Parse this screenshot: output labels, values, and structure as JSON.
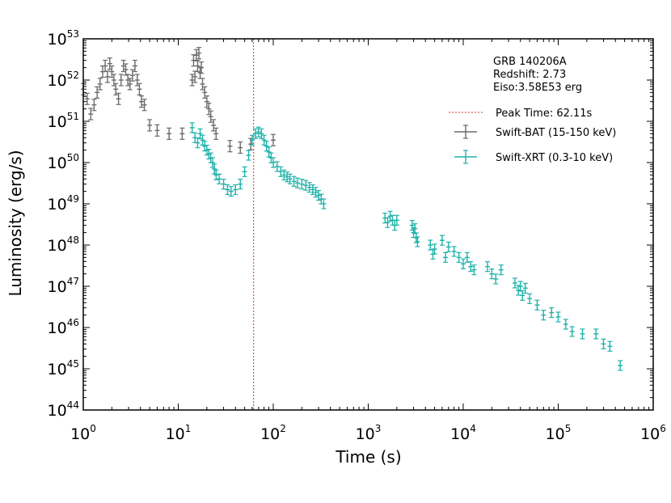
{
  "chart_data": {
    "type": "scatter",
    "title": "",
    "xlabel": "Time (s)",
    "ylabel": "Luminosity (erg/s)",
    "xscale": "log",
    "yscale": "log",
    "xlim": [
      1,
      1000000
    ],
    "ylim": [
      1e+44,
      1e+53
    ],
    "x_ticks": [
      {
        "base": "10",
        "exp": "0"
      },
      {
        "base": "10",
        "exp": "1"
      },
      {
        "base": "10",
        "exp": "2"
      },
      {
        "base": "10",
        "exp": "3"
      },
      {
        "base": "10",
        "exp": "4"
      },
      {
        "base": "10",
        "exp": "5"
      },
      {
        "base": "10",
        "exp": "6"
      }
    ],
    "y_ticks": [
      {
        "base": "10",
        "exp": "44"
      },
      {
        "base": "10",
        "exp": "45"
      },
      {
        "base": "10",
        "exp": "46"
      },
      {
        "base": "10",
        "exp": "47"
      },
      {
        "base": "10",
        "exp": "48"
      },
      {
        "base": "10",
        "exp": "49"
      },
      {
        "base": "10",
        "exp": "50"
      },
      {
        "base": "10",
        "exp": "51"
      },
      {
        "base": "10",
        "exp": "52"
      },
      {
        "base": "10",
        "exp": "53"
      }
    ],
    "info": {
      "grb": "GRB 140206A",
      "redshift": "Redshift: 2.73",
      "eiso": "Eiso:3.58E53 erg"
    },
    "peak_time": {
      "label": "Peak Time: 62.11s",
      "value": 62.11,
      "color": "#c0392b"
    },
    "legend_position": "upper-right",
    "series": [
      {
        "name": "Swift-BAT (15-150 keV)",
        "color": "#6b6b6b",
        "points": [
          [
            1.0,
            6e+51
          ],
          [
            1.1,
            3.5e+51
          ],
          [
            1.2,
            1.5e+51
          ],
          [
            1.3,
            2.5e+51
          ],
          [
            1.4,
            5e+51
          ],
          [
            1.5,
            8e+51
          ],
          [
            1.6,
            1.6e+52
          ],
          [
            1.7,
            2.2e+52
          ],
          [
            1.8,
            1.2e+52
          ],
          [
            1.9,
            2.5e+52
          ],
          [
            2.0,
            1.6e+52
          ],
          [
            2.1,
            1e+52
          ],
          [
            2.2,
            6e+51
          ],
          [
            2.35,
            3.5e+51
          ],
          [
            2.5,
            1e+52
          ],
          [
            2.65,
            2.2e+52
          ],
          [
            2.8,
            1.8e+52
          ],
          [
            2.95,
            1e+52
          ],
          [
            3.1,
            8e+51
          ],
          [
            3.3,
            1.3e+52
          ],
          [
            3.5,
            2.2e+52
          ],
          [
            3.7,
            1e+52
          ],
          [
            3.9,
            6e+51
          ],
          [
            4.1,
            3e+51
          ],
          [
            4.4,
            2.5e+51
          ],
          [
            5.0,
            8e+50
          ],
          [
            6.0,
            6e+50
          ],
          [
            8.0,
            5e+50
          ],
          [
            11,
            5e+50
          ],
          [
            14,
            1e+52
          ],
          [
            14.5,
            3e+52
          ],
          [
            15,
            1.2e+52
          ],
          [
            15.5,
            4e+52
          ],
          [
            16,
            2.2e+52
          ],
          [
            16.5,
            4.5e+52
          ],
          [
            17,
            1.5e+52
          ],
          [
            17.5,
            2e+52
          ],
          [
            18,
            8e+51
          ],
          [
            19,
            5e+51
          ],
          [
            20,
            3e+51
          ],
          [
            21,
            2e+51
          ],
          [
            22,
            1.3e+51
          ],
          [
            23.5,
            8e+50
          ],
          [
            25,
            5e+50
          ],
          [
            35,
            2.5e+50
          ],
          [
            45,
            2.3e+50
          ],
          [
            58,
            2.8e+50
          ],
          [
            100,
            3.5e+50
          ]
        ]
      },
      {
        "name": "Swift-XRT (0.3-10 keV)",
        "color": "#20b2aa",
        "points": [
          [
            14,
            7e+50
          ],
          [
            15,
            4e+50
          ],
          [
            16,
            3e+50
          ],
          [
            17,
            5e+50
          ],
          [
            18,
            3.5e+50
          ],
          [
            19,
            2.5e+50
          ],
          [
            20,
            2e+50
          ],
          [
            21,
            1.6e+50
          ],
          [
            22,
            1.3e+50
          ],
          [
            23,
            1e+50
          ],
          [
            24,
            7e+49
          ],
          [
            25,
            5e+49
          ],
          [
            27,
            4e+49
          ],
          [
            30,
            3e+49
          ],
          [
            33,
            2.2e+49
          ],
          [
            36,
            2e+49
          ],
          [
            40,
            2.2e+49
          ],
          [
            45,
            3e+49
          ],
          [
            50,
            6e+49
          ],
          [
            55,
            1.5e+50
          ],
          [
            60,
            3.5e+50
          ],
          [
            65,
            5e+50
          ],
          [
            70,
            5.5e+50
          ],
          [
            75,
            5e+50
          ],
          [
            80,
            3.5e+50
          ],
          [
            85,
            2.5e+50
          ],
          [
            90,
            1.8e+50
          ],
          [
            95,
            1.3e+50
          ],
          [
            100,
            1e+50
          ],
          [
            110,
            8e+49
          ],
          [
            120,
            6e+49
          ],
          [
            130,
            5e+49
          ],
          [
            140,
            4.5e+49
          ],
          [
            150,
            4e+49
          ],
          [
            165,
            3.5e+49
          ],
          [
            180,
            3.2e+49
          ],
          [
            200,
            3e+49
          ],
          [
            220,
            2.8e+49
          ],
          [
            240,
            2.5e+49
          ],
          [
            260,
            2.2e+49
          ],
          [
            280,
            1.9e+49
          ],
          [
            300,
            1.6e+49
          ],
          [
            320,
            1.3e+49
          ],
          [
            340,
            1e+49
          ],
          [
            1500,
            4.5e+48
          ],
          [
            1600,
            3.5e+48
          ],
          [
            1700,
            5e+48
          ],
          [
            1800,
            4e+48
          ],
          [
            1900,
            3e+48
          ],
          [
            2000,
            4e+48
          ],
          [
            2900,
            3e+48
          ],
          [
            3000,
            2e+48
          ],
          [
            3100,
            2.5e+48
          ],
          [
            3200,
            1.5e+48
          ],
          [
            3300,
            1.2e+48
          ],
          [
            4500,
            1e+48
          ],
          [
            4800,
            6e+47
          ],
          [
            5000,
            8e+47
          ],
          [
            6000,
            1.3e+48
          ],
          [
            6500,
            5e+47
          ],
          [
            7000,
            9e+47
          ],
          [
            8000,
            7e+47
          ],
          [
            9000,
            5e+47
          ],
          [
            10000,
            3.5e+47
          ],
          [
            11000,
            5e+47
          ],
          [
            12000,
            3e+47
          ],
          [
            13000,
            2.5e+47
          ],
          [
            18000,
            3e+47
          ],
          [
            20000,
            2e+47
          ],
          [
            22000,
            1.5e+47
          ],
          [
            25000,
            2.5e+47
          ],
          [
            35000,
            1.2e+47
          ],
          [
            38000,
            8e+46
          ],
          [
            40000,
            1e+47
          ],
          [
            42000,
            6e+46
          ],
          [
            45000,
            9e+46
          ],
          [
            50000,
            5e+46
          ],
          [
            60000,
            3.5e+46
          ],
          [
            70000,
            2e+46
          ],
          [
            85000,
            2.3e+46
          ],
          [
            100000,
            1.8e+46
          ],
          [
            120000,
            1.2e+46
          ],
          [
            140000,
            8e+45
          ],
          [
            180000,
            7e+45
          ],
          [
            250000,
            7e+45
          ],
          [
            300000,
            4e+45
          ],
          [
            350000,
            3.5e+45
          ],
          [
            450000,
            1.2e+45
          ]
        ]
      }
    ]
  }
}
